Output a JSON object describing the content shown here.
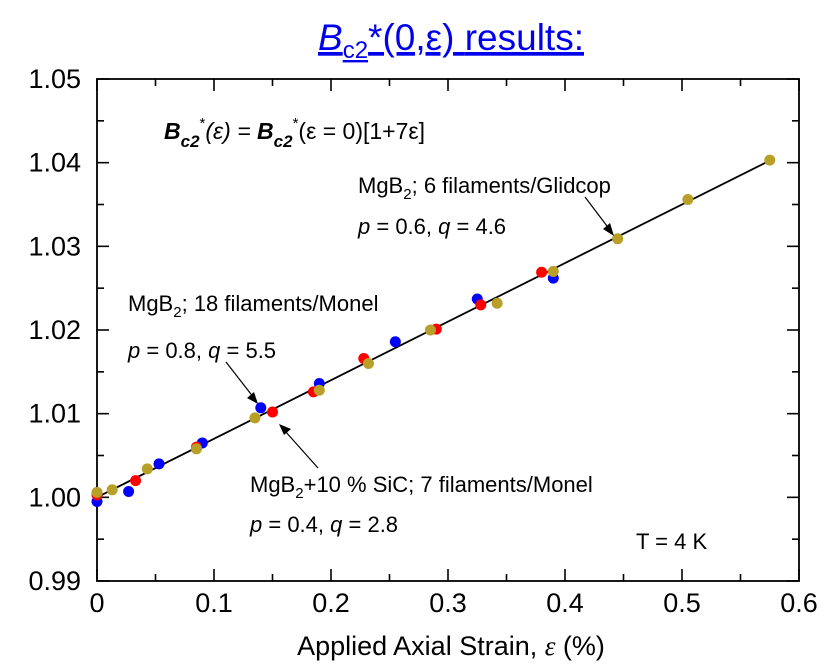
{
  "chart_data": {
    "type": "scatter",
    "title": {
      "text": "results:",
      "b_symbol": "B",
      "subscript": "c2",
      "suffix": "*(0,ε)"
    },
    "xlabel": "Applied Axial Strain,",
    "xlabel_symbol": "ε",
    "xlabel_unit": "(%)",
    "xlim": [
      0,
      0.6
    ],
    "ylim": [
      0.99,
      1.05
    ],
    "x_ticks": [
      0,
      0.1,
      0.2,
      0.3,
      0.4,
      0.5,
      0.6
    ],
    "x_tick_labels": [
      "0",
      "0.1",
      "0.2",
      "0.3",
      "0.4",
      "0.5",
      "0.6"
    ],
    "y_ticks": [
      0.99,
      1.0,
      1.01,
      1.02,
      1.03,
      1.04,
      1.05
    ],
    "y_tick_labels": [
      "0.99",
      "1.00",
      "1.01",
      "1.02",
      "1.03",
      "1.04",
      "1.05"
    ],
    "equation": {
      "b1": "B",
      "s1": "c2",
      "star1": "*",
      "arg1": "(ε) =",
      "b2": "B",
      "s2": "c2",
      "star2": "*",
      "arg2": "(ε = 0)[1+7ε]"
    },
    "fit_line": {
      "x": [
        0,
        0.575
      ],
      "y": [
        1.0,
        1.04025
      ],
      "color": "#000000"
    },
    "series": [
      {
        "color": "#0000ff",
        "points": [
          [
            0.0,
            0.9995
          ],
          [
            0.027,
            1.0007
          ],
          [
            0.053,
            1.004
          ],
          [
            0.09,
            1.0065
          ],
          [
            0.14,
            1.0107
          ],
          [
            0.19,
            1.0136
          ],
          [
            0.255,
            1.0186
          ],
          [
            0.325,
            1.0237
          ],
          [
            0.39,
            1.0262
          ]
        ]
      },
      {
        "color": "#ff0000",
        "points": [
          [
            0.0,
            1.0003
          ],
          [
            0.033,
            1.002
          ],
          [
            0.085,
            1.006
          ],
          [
            0.15,
            1.0102
          ],
          [
            0.185,
            1.0126
          ],
          [
            0.228,
            1.0166
          ],
          [
            0.29,
            1.0201
          ],
          [
            0.328,
            1.023
          ],
          [
            0.38,
            1.0269
          ]
        ]
      },
      {
        "color": "#b8a028",
        "points": [
          [
            0.0,
            1.0006
          ],
          [
            0.013,
            1.0009
          ],
          [
            0.043,
            1.0034
          ],
          [
            0.085,
            1.0058
          ],
          [
            0.135,
            1.0095
          ],
          [
            0.19,
            1.0128
          ],
          [
            0.232,
            1.016
          ],
          [
            0.285,
            1.02
          ],
          [
            0.342,
            1.0232
          ],
          [
            0.39,
            1.027
          ],
          [
            0.445,
            1.0309
          ],
          [
            0.505,
            1.0356
          ],
          [
            0.575,
            1.0403
          ]
        ]
      }
    ],
    "annotations": {
      "gc_name_a": "MgB",
      "gc_name_sub": "2",
      "gc_name_b": "; 6 filaments/Glidcop",
      "gc_p": "p",
      "gc_params_a": " = 0.6, ",
      "gc_q": "q",
      "gc_params_b": " = 4.6",
      "mo_name_a": "MgB",
      "mo_name_sub": "2",
      "mo_name_b": "; 18 filaments/Monel",
      "mo_p": "p",
      "mo_params_a": " = 0.8, ",
      "mo_q": "q",
      "mo_params_b": " = 5.5",
      "sic_name_a": "MgB",
      "sic_name_sub": "2",
      "sic_name_b": "+10 % SiC; 7 filaments/Monel",
      "sic_p": "p",
      "sic_params_a": " = 0.4, ",
      "sic_q": "q",
      "sic_params_b": " = 2.8",
      "temperature": "T = 4 K"
    }
  }
}
